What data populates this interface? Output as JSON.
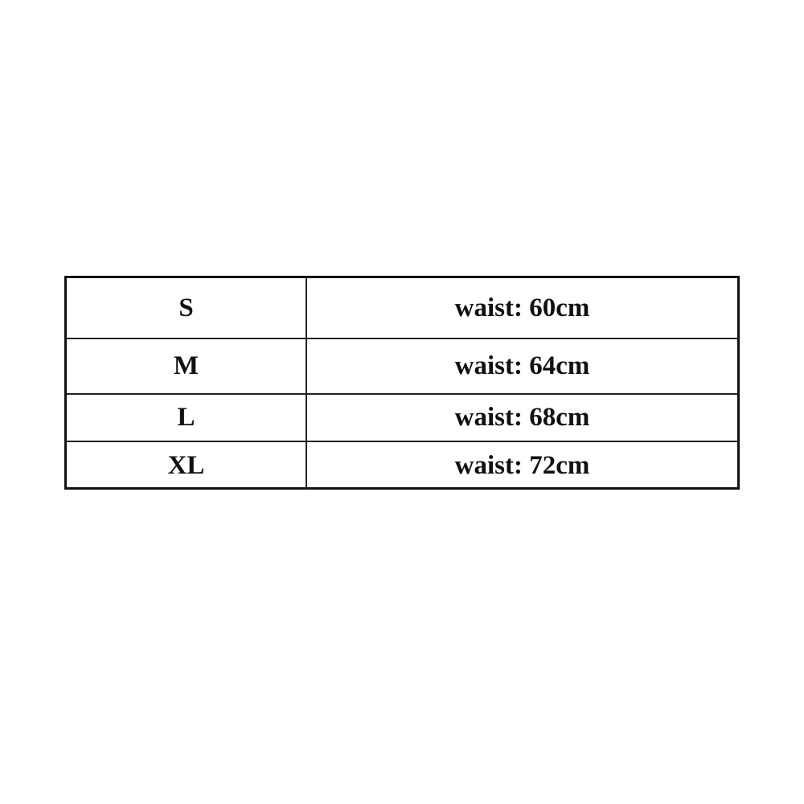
{
  "size_table": {
    "rows": [
      {
        "size": "S",
        "measurement": "waist: 60cm"
      },
      {
        "size": "M",
        "measurement": "waist: 64cm"
      },
      {
        "size": "L",
        "measurement": "waist: 68cm"
      },
      {
        "size": "XL",
        "measurement": "waist: 72cm"
      }
    ]
  }
}
